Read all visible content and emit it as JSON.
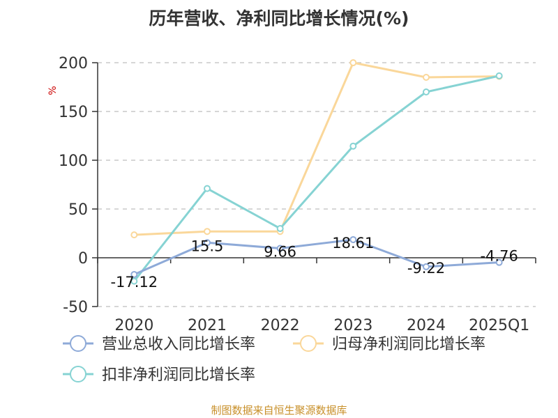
{
  "chart_data": {
    "type": "line",
    "title": "历年营收、净利同比增长情况(%)",
    "y_unit": "%",
    "categories": [
      "2020",
      "2021",
      "2022",
      "2023",
      "2024",
      "2025Q1"
    ],
    "ylim": [
      -50,
      200
    ],
    "yticks": [
      -50,
      0,
      50,
      100,
      150,
      200
    ],
    "grid": true,
    "legend_position": "bottom",
    "series": [
      {
        "name": "营业总收入同比增长率",
        "color": "#8eaad8",
        "values": [
          -17.12,
          15.5,
          9.66,
          18.61,
          -9.22,
          -4.76
        ],
        "labels": [
          "-17.12",
          "15.5",
          "9.66",
          "18.61",
          "-9.22",
          "-4.76"
        ]
      },
      {
        "name": "归母净利润同比增长率",
        "color": "#fad79a",
        "values": [
          23.5,
          27,
          27,
          200,
          185,
          186
        ]
      },
      {
        "name": "扣非净利润同比增长率",
        "color": "#86d3d3",
        "values": [
          -24,
          71,
          30,
          114.5,
          170,
          186.5
        ]
      }
    ]
  },
  "footer": {
    "source": "制图数据来自恒生聚源数据库"
  }
}
